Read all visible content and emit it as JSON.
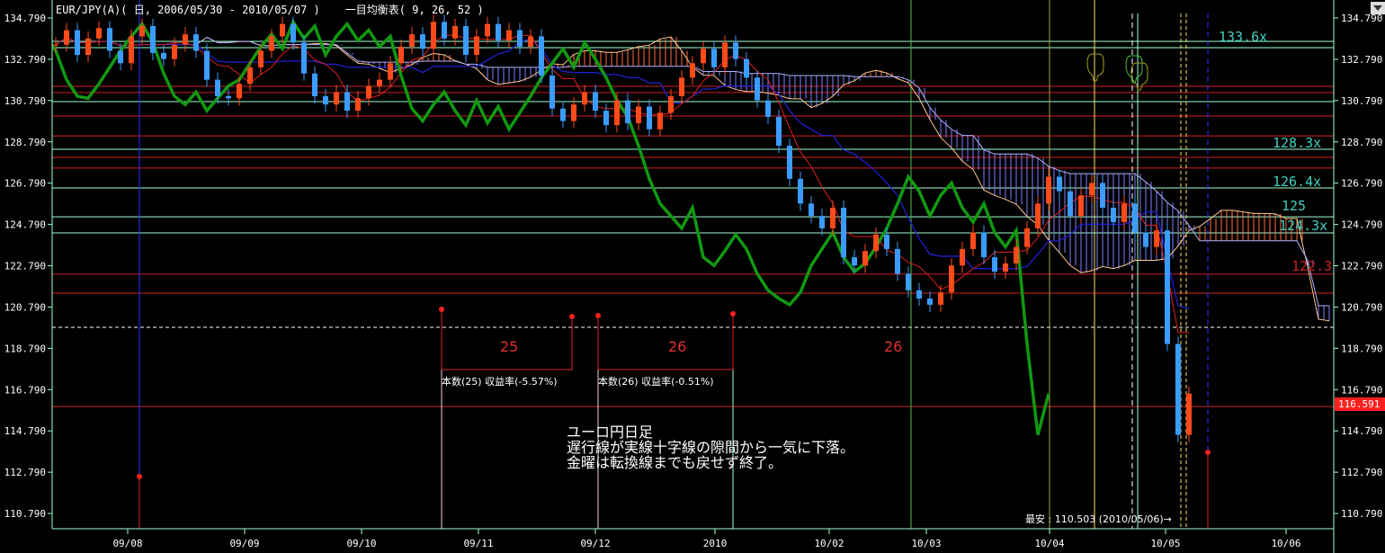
{
  "header": {
    "symbol": "EUR/JPY(A)( 日, 2006/05/30 - 2010/05/07 )",
    "indicator": "一目均衡表( 9, 26, 52 )"
  },
  "colors": {
    "up_candle": "#ff4a1a",
    "down_candle": "#3b9cff",
    "tenkan": "#e02020",
    "kijun": "#2020d0",
    "chikou": "#119911",
    "span_a": "#ffc890",
    "span_b": "#b0b0ff",
    "cloud_bull": "#ff7040",
    "cloud_bear": "#8080ff",
    "support_line": "#a0ffd0",
    "resist_line": "#d02020"
  },
  "chart_data": {
    "type": "candlestick",
    "title": "EUR/JPY(A)( 日, 2006/05/30 - 2010/05/07 )",
    "overlay": "一目均衡表( 9, 26, 52 )",
    "ylim": [
      110.0,
      135.5
    ],
    "y_ticks": [
      "134.790",
      "132.790",
      "130.790",
      "128.790",
      "126.790",
      "124.790",
      "122.790",
      "120.790",
      "118.790",
      "116.790",
      "114.790",
      "112.790",
      "110.790"
    ],
    "x_tick_labels": [
      "09/08",
      "09/09",
      "09/10",
      "09/11",
      "09/12",
      "2010",
      "10/02",
      "10/03",
      "10/04",
      "10/05",
      "10/06"
    ],
    "close": [
      133.5,
      134.2,
      133.0,
      133.8,
      134.3,
      133.2,
      132.6,
      133.9,
      134.4,
      133.1,
      132.8,
      133.5,
      134.0,
      133.2,
      131.8,
      131.0,
      130.9,
      131.6,
      132.4,
      133.2,
      133.9,
      134.5,
      133.6,
      132.1,
      131.0,
      130.6,
      131.2,
      130.3,
      130.9,
      131.5,
      131.8,
      132.6,
      133.4,
      134.0,
      133.3,
      134.6,
      133.8,
      134.4,
      133.0,
      133.9,
      134.5,
      133.7,
      134.2,
      133.4,
      133.9,
      132.0,
      130.4,
      129.8,
      130.6,
      131.2,
      130.3,
      129.6,
      130.8,
      129.7,
      130.5,
      129.4,
      130.2,
      131.0,
      131.9,
      132.6,
      133.3,
      132.4,
      133.6,
      132.8,
      131.9,
      130.8,
      130.0,
      128.6,
      127.0,
      125.8,
      125.2,
      124.6,
      125.6,
      123.2,
      122.8,
      123.5,
      124.3,
      123.6,
      122.4,
      121.6,
      121.2,
      120.9,
      121.5,
      122.8,
      123.6,
      124.4,
      123.2,
      122.5,
      122.9,
      123.7,
      124.6,
      125.8,
      127.1,
      126.4,
      125.2,
      126.2,
      126.8,
      125.6,
      124.9,
      125.8,
      124.4,
      123.7,
      124.5,
      119.0,
      114.6,
      116.6
    ],
    "horizontal_levels": {
      "support": [
        133.66,
        133.35,
        130.74,
        128.43,
        126.56,
        125.16,
        124.38
      ],
      "resistance": [
        131.48,
        131.18,
        130.04,
        129.08,
        128.04,
        127.52,
        122.38,
        121.46,
        115.97
      ],
      "dashed": 119.81
    },
    "level_labels": [
      "133.6x",
      "128.3x",
      "126.4x",
      "125",
      "124.3x",
      "122.3"
    ],
    "current_price": "116.591",
    "lowest": "最安 : 110.503 (2010/05/06)→"
  },
  "annotations": {
    "count_a": "25",
    "count_b": "26",
    "count_c": "26",
    "stat_a": "本数(25) 収益率(-5.57%)",
    "stat_b": "本数(26) 収益率(-0.51%)",
    "note_lines": [
      "ユーロ円日足",
      "遅行線が実線十字線の隙間から一気に下落。",
      "金曜は転換線までも戻せず終了。"
    ]
  }
}
